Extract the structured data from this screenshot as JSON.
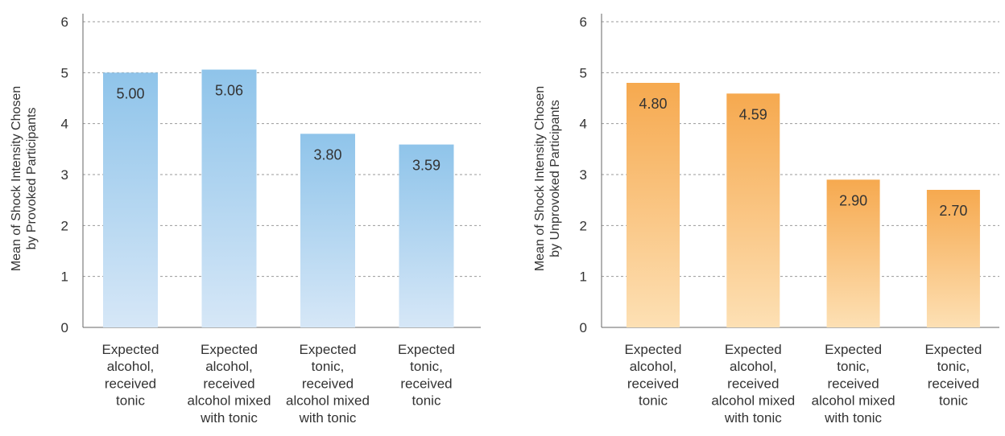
{
  "chart_data": [
    {
      "type": "bar",
      "categories": [
        [
          "Expected",
          "alcohol,",
          "received",
          "tonic"
        ],
        [
          "Expected",
          "alcohol,",
          "received",
          "alcohol mixed",
          "with tonic"
        ],
        [
          "Expected",
          "tonic,",
          "received",
          "alcohol mixed",
          "with tonic"
        ],
        [
          "Expected",
          "tonic,",
          "received",
          "tonic"
        ]
      ],
      "values": [
        5.0,
        5.06,
        3.8,
        3.59
      ],
      "data_labels": [
        "5.00",
        "5.06",
        "3.80",
        "3.59"
      ],
      "ylabel": [
        "Mean of Shock Intensity Chosen",
        "by Provoked Participants"
      ],
      "ylim": [
        0,
        6
      ],
      "yticks": [
        "0",
        "1",
        "2",
        "3",
        "4",
        "5",
        "6"
      ],
      "grid": true,
      "colors": {
        "top": "#8fc4ea",
        "bottom": "#d6e7f7"
      }
    },
    {
      "type": "bar",
      "categories": [
        [
          "Expected",
          "alcohol,",
          "received",
          "tonic"
        ],
        [
          "Expected",
          "alcohol,",
          "received",
          "alcohol mixed",
          "with tonic"
        ],
        [
          "Expected",
          "tonic,",
          "received",
          "alcohol mixed",
          "with tonic"
        ],
        [
          "Expected",
          "tonic,",
          "received",
          "tonic"
        ]
      ],
      "values": [
        4.8,
        4.59,
        2.9,
        2.7
      ],
      "data_labels": [
        "4.80",
        "4.59",
        "2.90",
        "2.70"
      ],
      "ylabel": [
        "Mean of Shock Intensity Chosen",
        "by Unprovoked Participants"
      ],
      "ylim": [
        0,
        6
      ],
      "yticks": [
        "0",
        "1",
        "2",
        "3",
        "4",
        "5",
        "6"
      ],
      "grid": true,
      "colors": {
        "top": "#f6a94f",
        "bottom": "#fde0b4"
      }
    }
  ]
}
